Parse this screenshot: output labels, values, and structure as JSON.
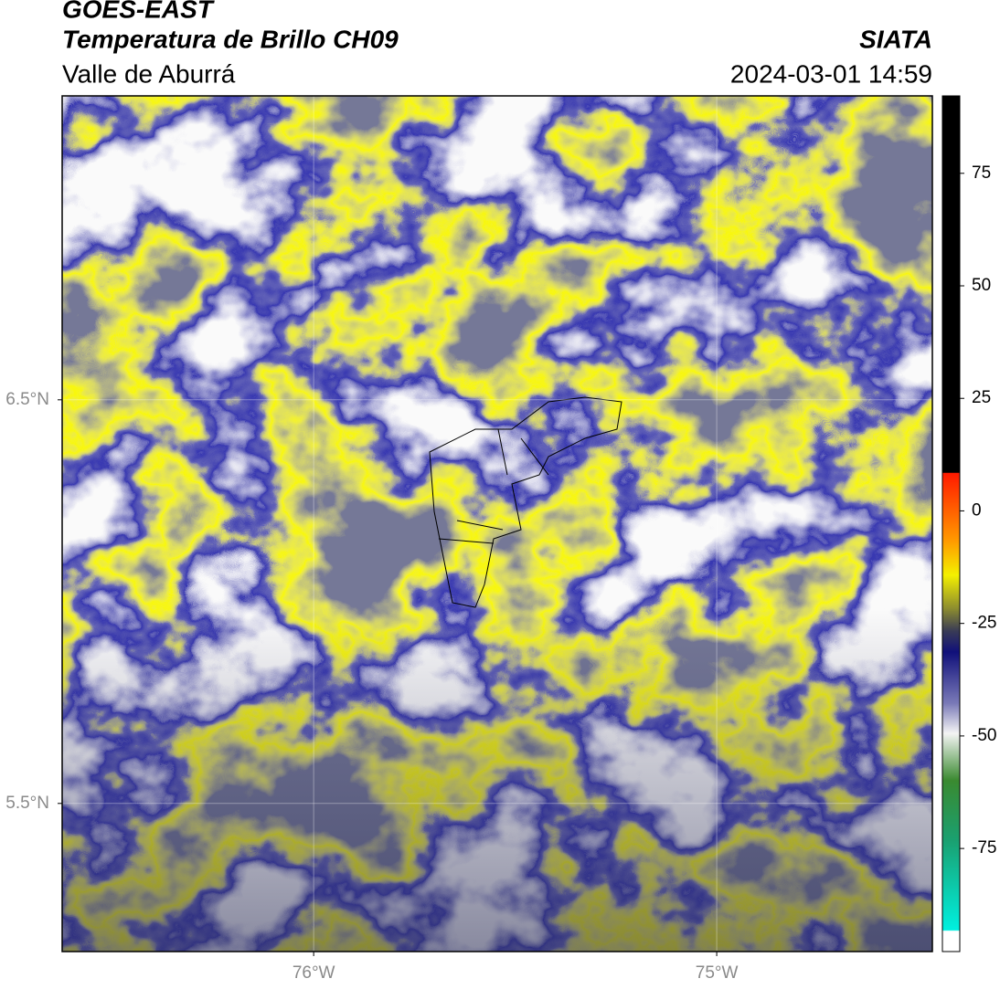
{
  "header": {
    "source": "GOES-EAST",
    "title": "Temperatura de Brillo CH09",
    "subtitle": "Valle de Aburrá",
    "agency": "SIATA",
    "datetime": "2024-03-01 14:59"
  },
  "map": {
    "xlim": [
      -76.624,
      -74.465
    ],
    "ylim": [
      5.133,
      7.253
    ],
    "xticks": [
      {
        "value": -76,
        "label": "76°W"
      },
      {
        "value": -75,
        "label": "75°W"
      }
    ],
    "yticks": [
      {
        "value": 6.5,
        "label": "6.5°N"
      },
      {
        "value": 5.5,
        "label": "5.5°N"
      }
    ]
  },
  "colorbar": {
    "lim": [
      -97.9,
      92.2
    ],
    "ticks": [
      75,
      50,
      25,
      0,
      -25,
      -50,
      -75
    ]
  }
}
